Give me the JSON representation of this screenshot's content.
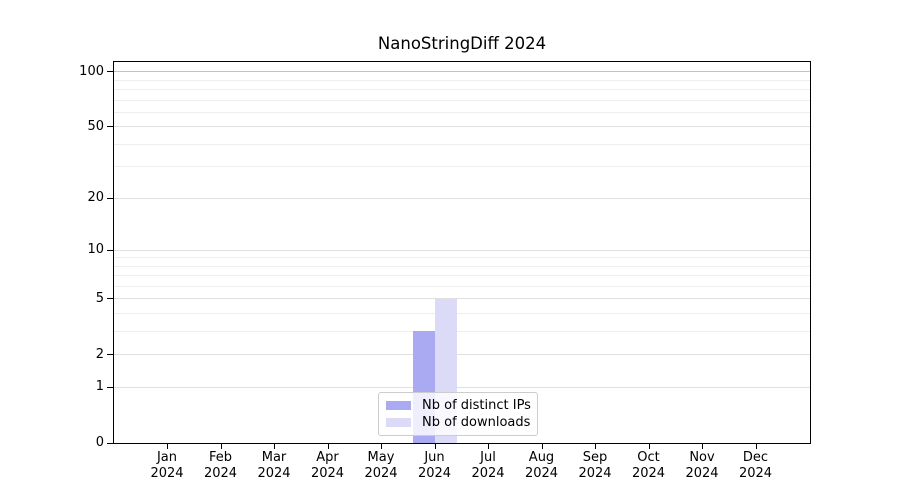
{
  "title": "NanoStringDiff 2024",
  "chart_data": {
    "type": "bar",
    "title": "NanoStringDiff 2024",
    "categories": [
      "Jan",
      "Feb",
      "Mar",
      "Apr",
      "May",
      "Jun",
      "Jul",
      "Aug",
      "Sep",
      "Oct",
      "Nov",
      "Dec"
    ],
    "category_year": "2024",
    "series": [
      {
        "name": "Nb of distinct IPs",
        "color": "#aaaaf3",
        "values": [
          0,
          0,
          0,
          0,
          0,
          3,
          0,
          0,
          0,
          0,
          0,
          0
        ]
      },
      {
        "name": "Nb of downloads",
        "color": "#dbdbf7",
        "values": [
          0,
          0,
          0,
          0,
          0,
          5,
          0,
          0,
          0,
          0,
          0,
          0
        ]
      }
    ],
    "yscale": "log1p",
    "ylim": [
      0,
      113
    ],
    "y_ticks": [
      0,
      1,
      2,
      5,
      10,
      20,
      50,
      100
    ],
    "y_minor_gridlines": [
      3,
      4,
      6,
      7,
      8,
      9,
      30,
      40,
      60,
      70,
      80,
      90
    ],
    "grid": true,
    "legend_position": "bottom-center",
    "xlabel": "",
    "ylabel": ""
  },
  "legend": {
    "items": [
      {
        "label": "Nb of distinct IPs",
        "color": "#aaaaf3"
      },
      {
        "label": "Nb of downloads",
        "color": "#dbdbf7"
      }
    ]
  },
  "colors": {
    "bar_distinct_ips": "#aaaaf3",
    "bar_downloads": "#dbdbf7",
    "grid_minor": "#eeeeee",
    "grid_major": "#e0e0e0",
    "grid_top": "#c3c3c3",
    "axis": "#000000",
    "legend_border": "#cccccc"
  }
}
